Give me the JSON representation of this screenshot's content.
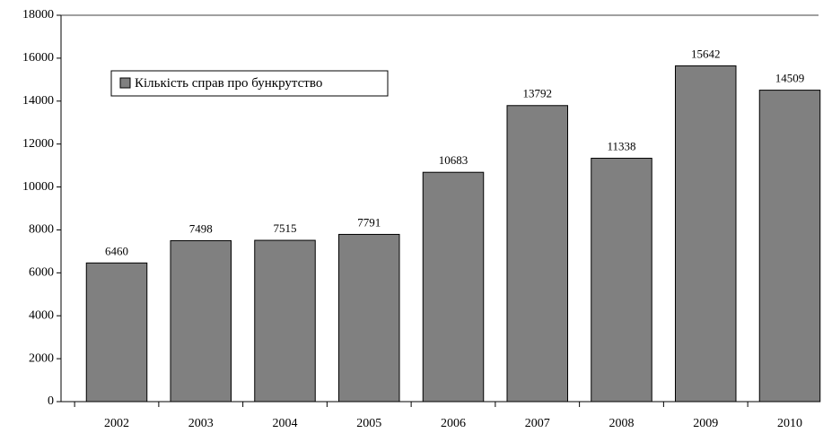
{
  "chart_data": {
    "type": "bar",
    "categories": [
      "2002",
      "2003",
      "2004",
      "2005",
      "2006",
      "2007",
      "2008",
      "2009",
      "2010"
    ],
    "series": [
      {
        "name": "Кількість справ про бункрутство",
        "color": "#808080",
        "values": [
          6460,
          7498,
          7515,
          7791,
          10683,
          13792,
          11338,
          15642,
          14509
        ]
      }
    ],
    "ylim": [
      0,
      18000
    ],
    "yticks": [
      0,
      2000,
      4000,
      6000,
      8000,
      10000,
      12000,
      14000,
      16000,
      18000
    ],
    "legend": "upper left"
  }
}
